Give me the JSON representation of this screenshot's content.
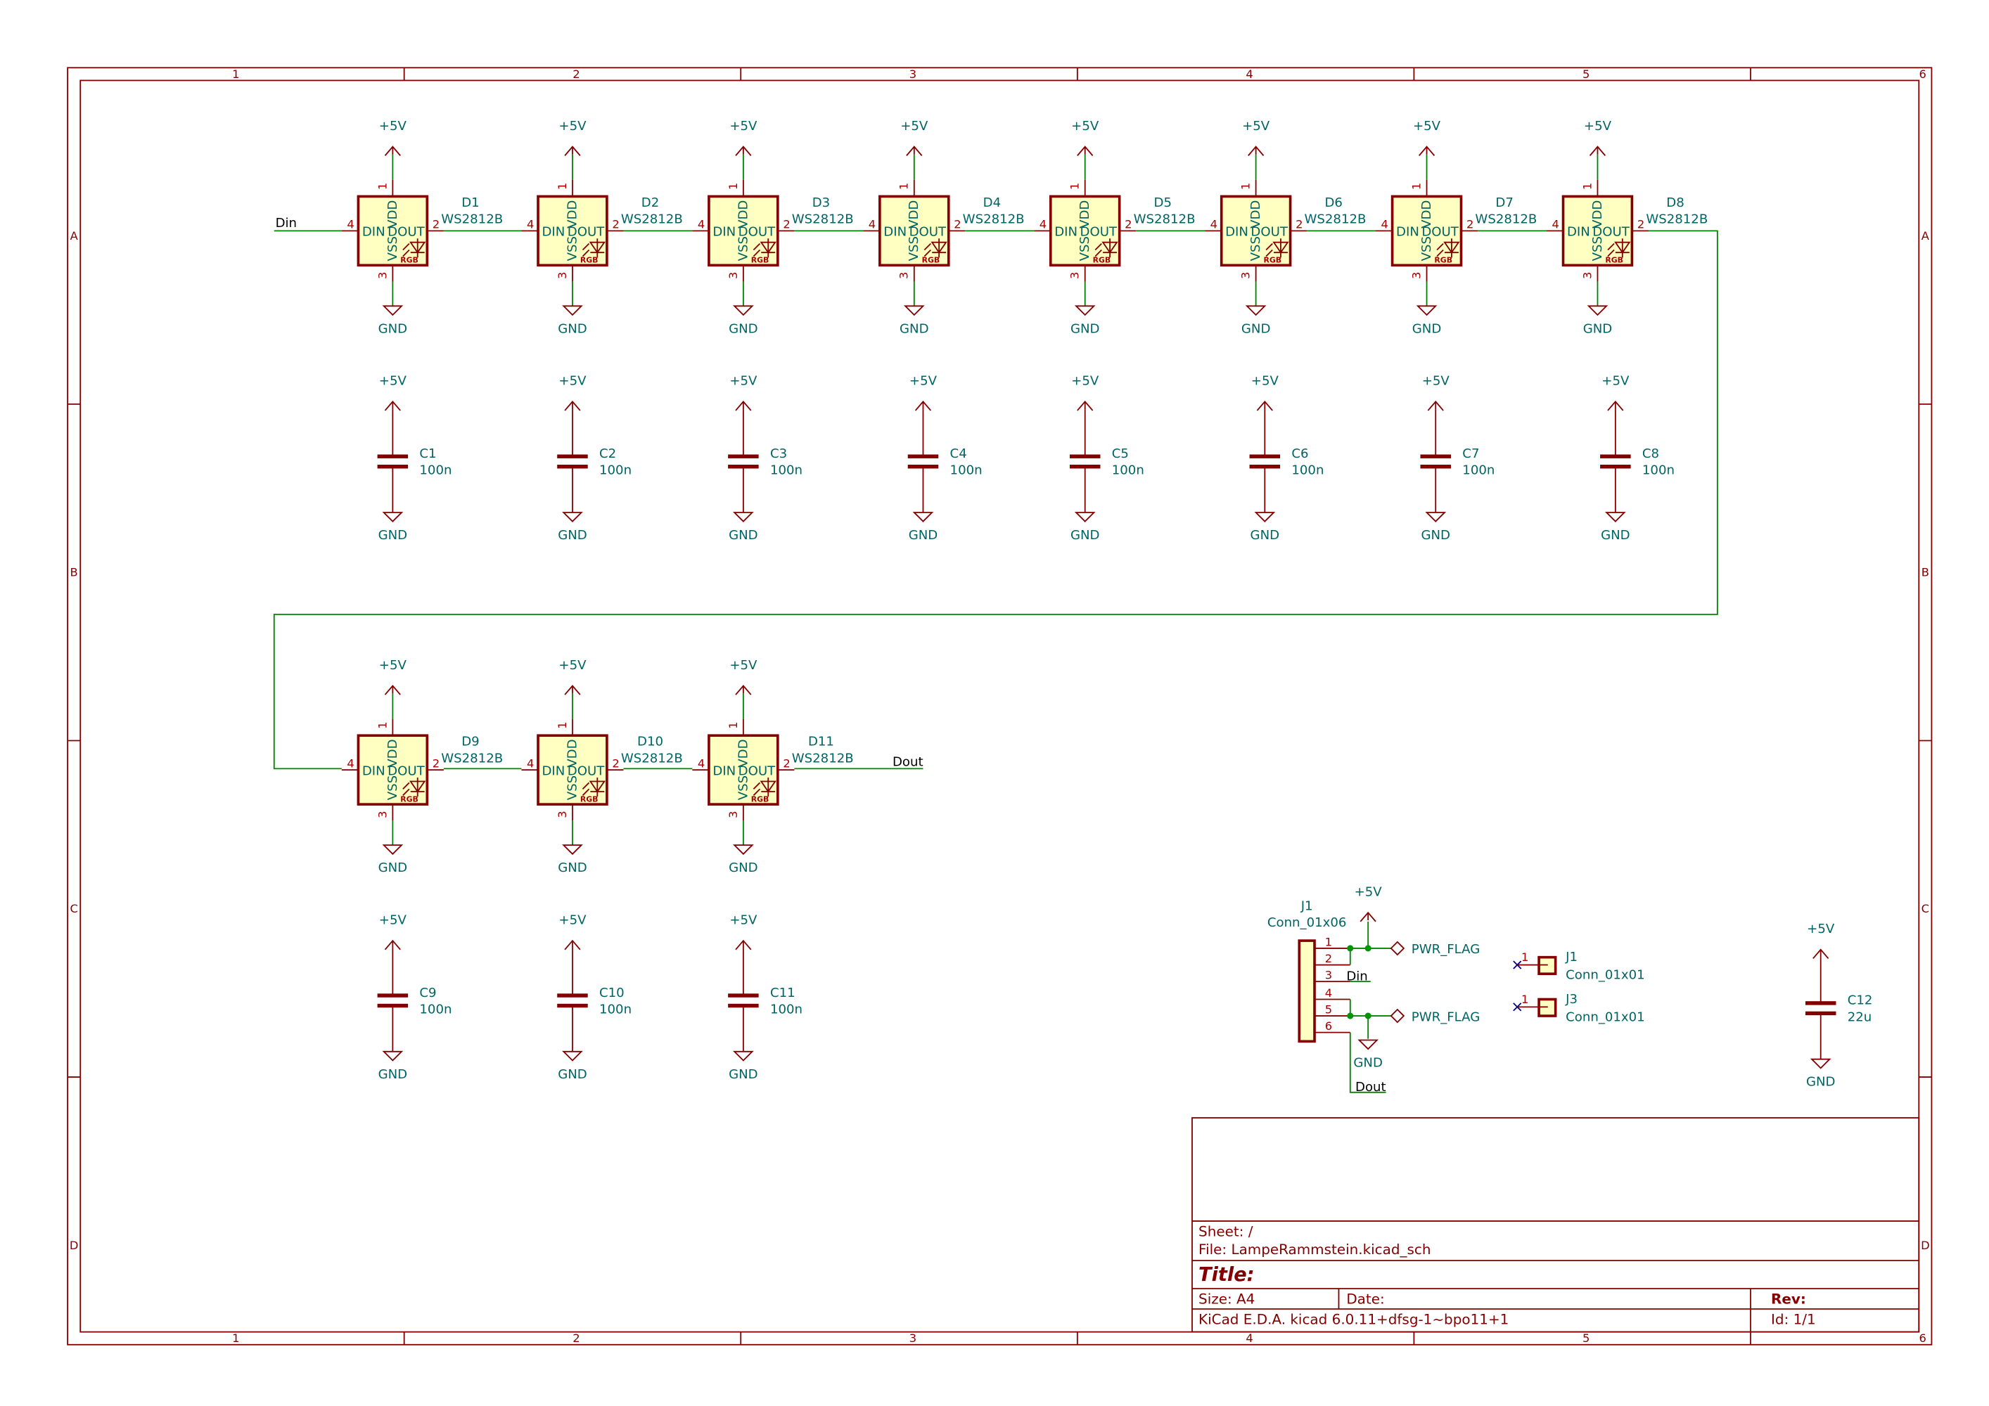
{
  "colors": {
    "frame": "#840000",
    "wire": "#008400",
    "text": "#006464",
    "pin_number": "#a90000",
    "body_fill": "#ffffc2",
    "no_connect": "#000084",
    "junction": "#009600"
  },
  "frame": {
    "columns": [
      "1",
      "2",
      "3",
      "4",
      "5",
      "6"
    ],
    "rows": [
      "A",
      "B",
      "C",
      "D"
    ]
  },
  "led_pins": {
    "din": "DIN",
    "dout": "DOUT",
    "vdd": "VDD",
    "vss": "VSS",
    "rgb": "RGB",
    "n_vdd": "1",
    "n_dout": "2",
    "n_vss": "3",
    "n_din": "4"
  },
  "power": {
    "vcc": "+5V",
    "gnd": "GND",
    "flag": "PWR_FLAG"
  },
  "leds": [
    {
      "ref": "D1",
      "value": "WS2812B"
    },
    {
      "ref": "D2",
      "value": "WS2812B"
    },
    {
      "ref": "D3",
      "value": "WS2812B"
    },
    {
      "ref": "D4",
      "value": "WS2812B"
    },
    {
      "ref": "D5",
      "value": "WS2812B"
    },
    {
      "ref": "D6",
      "value": "WS2812B"
    },
    {
      "ref": "D7",
      "value": "WS2812B"
    },
    {
      "ref": "D8",
      "value": "WS2812B"
    },
    {
      "ref": "D9",
      "value": "WS2812B"
    },
    {
      "ref": "D10",
      "value": "WS2812B"
    },
    {
      "ref": "D11",
      "value": "WS2812B"
    }
  ],
  "caps": [
    {
      "ref": "C1",
      "value": "100n"
    },
    {
      "ref": "C2",
      "value": "100n"
    },
    {
      "ref": "C3",
      "value": "100n"
    },
    {
      "ref": "C4",
      "value": "100n"
    },
    {
      "ref": "C5",
      "value": "100n"
    },
    {
      "ref": "C6",
      "value": "100n"
    },
    {
      "ref": "C7",
      "value": "100n"
    },
    {
      "ref": "C8",
      "value": "100n"
    },
    {
      "ref": "C9",
      "value": "100n"
    },
    {
      "ref": "C10",
      "value": "100n"
    },
    {
      "ref": "C11",
      "value": "100n"
    },
    {
      "ref": "C12",
      "value": "22u"
    }
  ],
  "nets": {
    "din": "Din",
    "dout": "Dout"
  },
  "connector": {
    "ref": "J1",
    "value": "Conn_01x06",
    "pins": [
      "1",
      "2",
      "3",
      "4",
      "5",
      "6"
    ]
  },
  "single_connectors": [
    {
      "ref": "J1",
      "value": "Conn_01x01",
      "pin": "1"
    },
    {
      "ref": "J3",
      "value": "Conn_01x01",
      "pin": "1"
    }
  ],
  "title_block": {
    "sheet": "Sheet: /",
    "file": "File: LampeRammstein.kicad_sch",
    "title": "Title:",
    "size": "Size: A4",
    "date": "Date:",
    "rev": "Rev:",
    "tool": "KiCad E.D.A.  kicad 6.0.11+dfsg-1~bpo11+1",
    "id": "Id: 1/1"
  }
}
